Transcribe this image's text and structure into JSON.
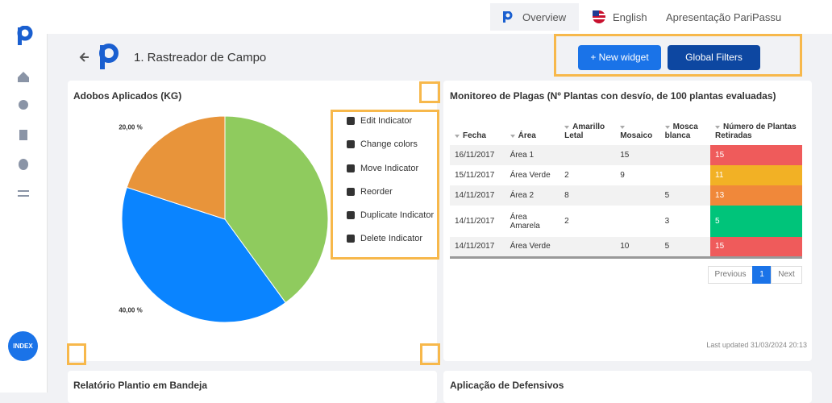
{
  "topbar": {
    "dashboard": "Overview",
    "language": "English",
    "workspace": "Apresentação PariPassu"
  },
  "sidebar": {
    "index_button": "INDEX"
  },
  "header": {
    "title": "1. Rastreador de Campo",
    "buttons": [
      "+ New widget",
      "Global Filters"
    ]
  },
  "widgets": [
    {
      "title": "Adobos Aplicados (KG)",
      "chart": {
        "type": "pie",
        "values": [
          40,
          40,
          20
        ],
        "value_labels": [
          null,
          "40,00 %",
          "20,00 %"
        ],
        "colors": [
          "#8fcb5e",
          "#0a84ff",
          "#e8943a"
        ]
      },
      "menu": [
        "Edit Indicator",
        "Change colors",
        "Move Indicator",
        "Reorder",
        "Duplicate Indicator",
        "Delete Indicator"
      ]
    },
    {
      "title": "Monitoreo de Plagas (Nº Plantas con desvío, de 100 plantas evaluadas)",
      "table": {
        "headers": [
          "Fecha",
          "Área",
          "Amarillo Letal",
          "Mosaico",
          "Mosca blanca",
          "Número de Plantas Retiradas"
        ],
        "rows": [
          [
            "16/11/2017",
            "Área 1",
            null,
            15,
            null,
            15
          ],
          [
            "15/11/2017",
            "Área Verde",
            2,
            9,
            null,
            11
          ],
          [
            "14/11/2017",
            "Área 2",
            8,
            null,
            5,
            13
          ],
          [
            "14/11/2017",
            "Área Amarela",
            2,
            null,
            3,
            5
          ],
          [
            "14/11/2017",
            "Área Verde",
            null,
            10,
            5,
            15
          ]
        ],
        "highlight_colors": [
          "#ef5b5b",
          "#f2b125",
          "#f0883a",
          "#00c47a",
          "#ef5b5b"
        ]
      },
      "pagination": [
        "Previous",
        1,
        "Next"
      ],
      "last_updated": "Last updated 31/03/2024 20:13"
    },
    {
      "title": "Relatório Plantio em Bandeja"
    },
    {
      "title": "Aplicação de Defensivos"
    }
  ]
}
